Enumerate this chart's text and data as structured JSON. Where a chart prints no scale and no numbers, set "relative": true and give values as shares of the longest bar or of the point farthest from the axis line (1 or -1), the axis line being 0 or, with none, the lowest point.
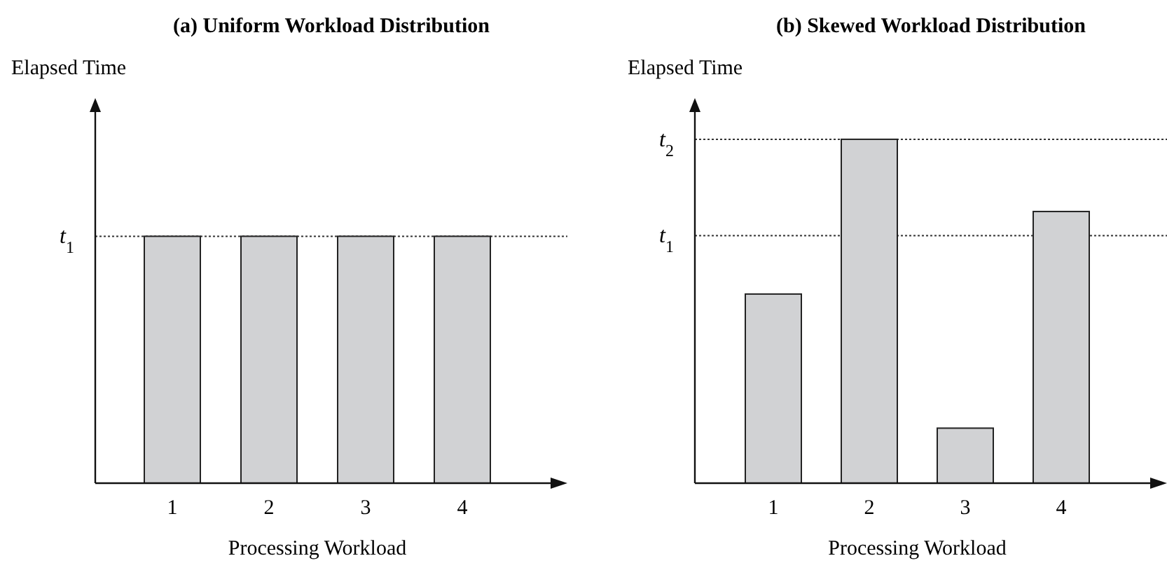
{
  "chart_data": [
    {
      "type": "bar",
      "title": "(a) Uniform Workload Distribution",
      "xlabel": "Processing Workload",
      "ylabel": "Elapsed Time",
      "categories": [
        "1",
        "2",
        "3",
        "4"
      ],
      "values": [
        1,
        1,
        1,
        1
      ],
      "color": "#d1d2d4",
      "relative": true,
      "ref_lines": [
        {
          "axis": "y",
          "value": 1,
          "label": "t$_{1}$",
          "line_style": "dotted"
        }
      ]
    },
    {
      "type": "bar",
      "title": "(b) Skewed Workload Distribution",
      "xlabel": "Processing Workload",
      "ylabel": "Elapsed Time",
      "categories": [
        "1",
        "2",
        "3",
        "4"
      ],
      "values": [
        0.55,
        1,
        0.16,
        0.79
      ],
      "color": "#d1d2d4",
      "relative": true,
      "ref_lines": [
        {
          "axis": "y",
          "value": 1,
          "label": "t$_{2}$",
          "line_style": "dotted"
        },
        {
          "axis": "y",
          "value": 0.72,
          "label": "t$_{1}$",
          "line_style": "dotted"
        }
      ]
    }
  ]
}
